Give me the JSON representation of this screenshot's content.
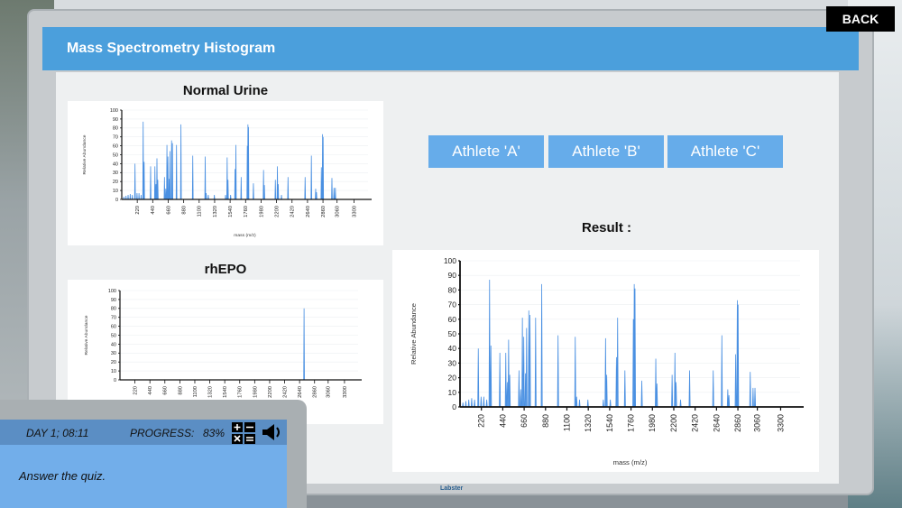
{
  "back_button": "BACK",
  "header": {
    "title": "Mass Spectrometry Histogram"
  },
  "footer_brand": "Labster",
  "buttons": [
    "Athlete 'A'",
    "Athlete 'B'",
    "Athlete 'C'"
  ],
  "result_label": "Result :",
  "hud": {
    "day_time": "DAY 1; 08:11",
    "progress_label": "PROGRESS:",
    "progress_value": "83%",
    "message": "Answer the quiz.",
    "icons": [
      "calculator-icon",
      "speaker-icon"
    ]
  },
  "colors": {
    "header": "#4b9fdc",
    "button": "#66acea",
    "series": "#4a90e2"
  },
  "chart_data": [
    {
      "id": "normal",
      "title": "Normal Urine",
      "type": "line",
      "xlabel": "mass (m/z)",
      "ylabel": "Relative Abundance",
      "xlim": [
        0,
        3500
      ],
      "ylim": [
        0,
        100
      ],
      "yticks": [
        0,
        10,
        20,
        30,
        40,
        50,
        60,
        70,
        80,
        90,
        100
      ],
      "xticks": [
        "220",
        "440",
        "660",
        "880",
        "1100",
        "1320",
        "1540",
        "1760",
        "1980",
        "2200",
        "2420",
        "2640",
        "2860",
        "3060",
        "3300"
      ],
      "peaks": [
        [
          30,
          3
        ],
        [
          60,
          4
        ],
        [
          90,
          5
        ],
        [
          120,
          6
        ],
        [
          150,
          5
        ],
        [
          188,
          40
        ],
        [
          217,
          7
        ],
        [
          245,
          7
        ],
        [
          275,
          5
        ],
        [
          304,
          87
        ],
        [
          318,
          42
        ],
        [
          410,
          37
        ],
        [
          471,
          37
        ],
        [
          486,
          17
        ],
        [
          500,
          46
        ],
        [
          512,
          22
        ],
        [
          607,
          25
        ],
        [
          625,
          12
        ],
        [
          642,
          61
        ],
        [
          656,
          48
        ],
        [
          674,
          23
        ],
        [
          685,
          54
        ],
        [
          708,
          66
        ],
        [
          720,
          63
        ],
        [
          778,
          61
        ],
        [
          841,
          84
        ],
        [
          1009,
          49
        ],
        [
          1186,
          48
        ],
        [
          1200,
          7
        ],
        [
          1230,
          5
        ],
        [
          1316,
          5
        ],
        [
          1475,
          5
        ],
        [
          1498,
          47
        ],
        [
          1510,
          22
        ],
        [
          1547,
          5
        ],
        [
          1610,
          34
        ],
        [
          1622,
          61
        ],
        [
          1697,
          25
        ],
        [
          1784,
          60
        ],
        [
          1793,
          84
        ],
        [
          1801,
          81
        ],
        [
          1871,
          18
        ],
        [
          2015,
          33
        ],
        [
          2027,
          16
        ],
        [
          2183,
          22
        ],
        [
          2212,
          37
        ],
        [
          2224,
          17
        ],
        [
          2270,
          5
        ],
        [
          2363,
          25
        ],
        [
          2606,
          25
        ],
        [
          2695,
          49
        ],
        [
          2756,
          12
        ],
        [
          2768,
          8
        ],
        [
          2837,
          36
        ],
        [
          2854,
          73
        ],
        [
          2862,
          70
        ],
        [
          2987,
          24
        ],
        [
          3016,
          13
        ],
        [
          3036,
          13
        ]
      ]
    },
    {
      "id": "rhepo",
      "title": "rhEPO",
      "type": "line",
      "xlabel": "",
      "ylabel": "Relative Abundance",
      "xlim": [
        0,
        3500
      ],
      "ylim": [
        0,
        100
      ],
      "yticks": [
        0,
        10,
        20,
        30,
        40,
        50,
        60,
        70,
        80,
        90,
        100
      ],
      "xticks": [
        "220",
        "440",
        "660",
        "880",
        "1100",
        "1320",
        "1540",
        "1760",
        "1980",
        "2200",
        "2420",
        "2640",
        "2860",
        "3060",
        "3300"
      ],
      "peaks": [
        [
          2706,
          80
        ]
      ]
    },
    {
      "id": "result",
      "title": "",
      "type": "line",
      "xlabel": "mass (m/z)",
      "ylabel": "Relative Abundance",
      "xlim": [
        0,
        3500
      ],
      "ylim": [
        0,
        100
      ],
      "yticks": [
        0,
        10,
        20,
        30,
        40,
        50,
        60,
        70,
        80,
        90,
        100
      ],
      "xticks": [
        "220",
        "440",
        "660",
        "880",
        "1100",
        "1320",
        "1540",
        "1760",
        "1980",
        "2200",
        "2420",
        "2640",
        "2860",
        "3060",
        "3300"
      ],
      "peaks": [
        [
          30,
          3
        ],
        [
          60,
          4
        ],
        [
          90,
          5
        ],
        [
          120,
          6
        ],
        [
          150,
          5
        ],
        [
          188,
          40
        ],
        [
          217,
          7
        ],
        [
          245,
          7
        ],
        [
          275,
          5
        ],
        [
          304,
          87
        ],
        [
          318,
          42
        ],
        [
          410,
          37
        ],
        [
          471,
          37
        ],
        [
          486,
          17
        ],
        [
          500,
          46
        ],
        [
          512,
          22
        ],
        [
          607,
          25
        ],
        [
          625,
          12
        ],
        [
          642,
          61
        ],
        [
          656,
          48
        ],
        [
          674,
          23
        ],
        [
          685,
          54
        ],
        [
          708,
          66
        ],
        [
          720,
          63
        ],
        [
          778,
          61
        ],
        [
          841,
          84
        ],
        [
          1009,
          49
        ],
        [
          1186,
          48
        ],
        [
          1200,
          7
        ],
        [
          1230,
          5
        ],
        [
          1316,
          5
        ],
        [
          1475,
          5
        ],
        [
          1498,
          47
        ],
        [
          1510,
          22
        ],
        [
          1547,
          5
        ],
        [
          1610,
          34
        ],
        [
          1622,
          61
        ],
        [
          1697,
          25
        ],
        [
          1784,
          60
        ],
        [
          1793,
          84
        ],
        [
          1801,
          81
        ],
        [
          1871,
          18
        ],
        [
          2015,
          33
        ],
        [
          2027,
          16
        ],
        [
          2183,
          22
        ],
        [
          2212,
          37
        ],
        [
          2224,
          17
        ],
        [
          2270,
          5
        ],
        [
          2363,
          25
        ],
        [
          2606,
          25
        ],
        [
          2695,
          49
        ],
        [
          2756,
          12
        ],
        [
          2768,
          8
        ],
        [
          2837,
          36
        ],
        [
          2854,
          73
        ],
        [
          2862,
          70
        ],
        [
          2987,
          24
        ],
        [
          3016,
          13
        ],
        [
          3036,
          13
        ]
      ]
    }
  ]
}
